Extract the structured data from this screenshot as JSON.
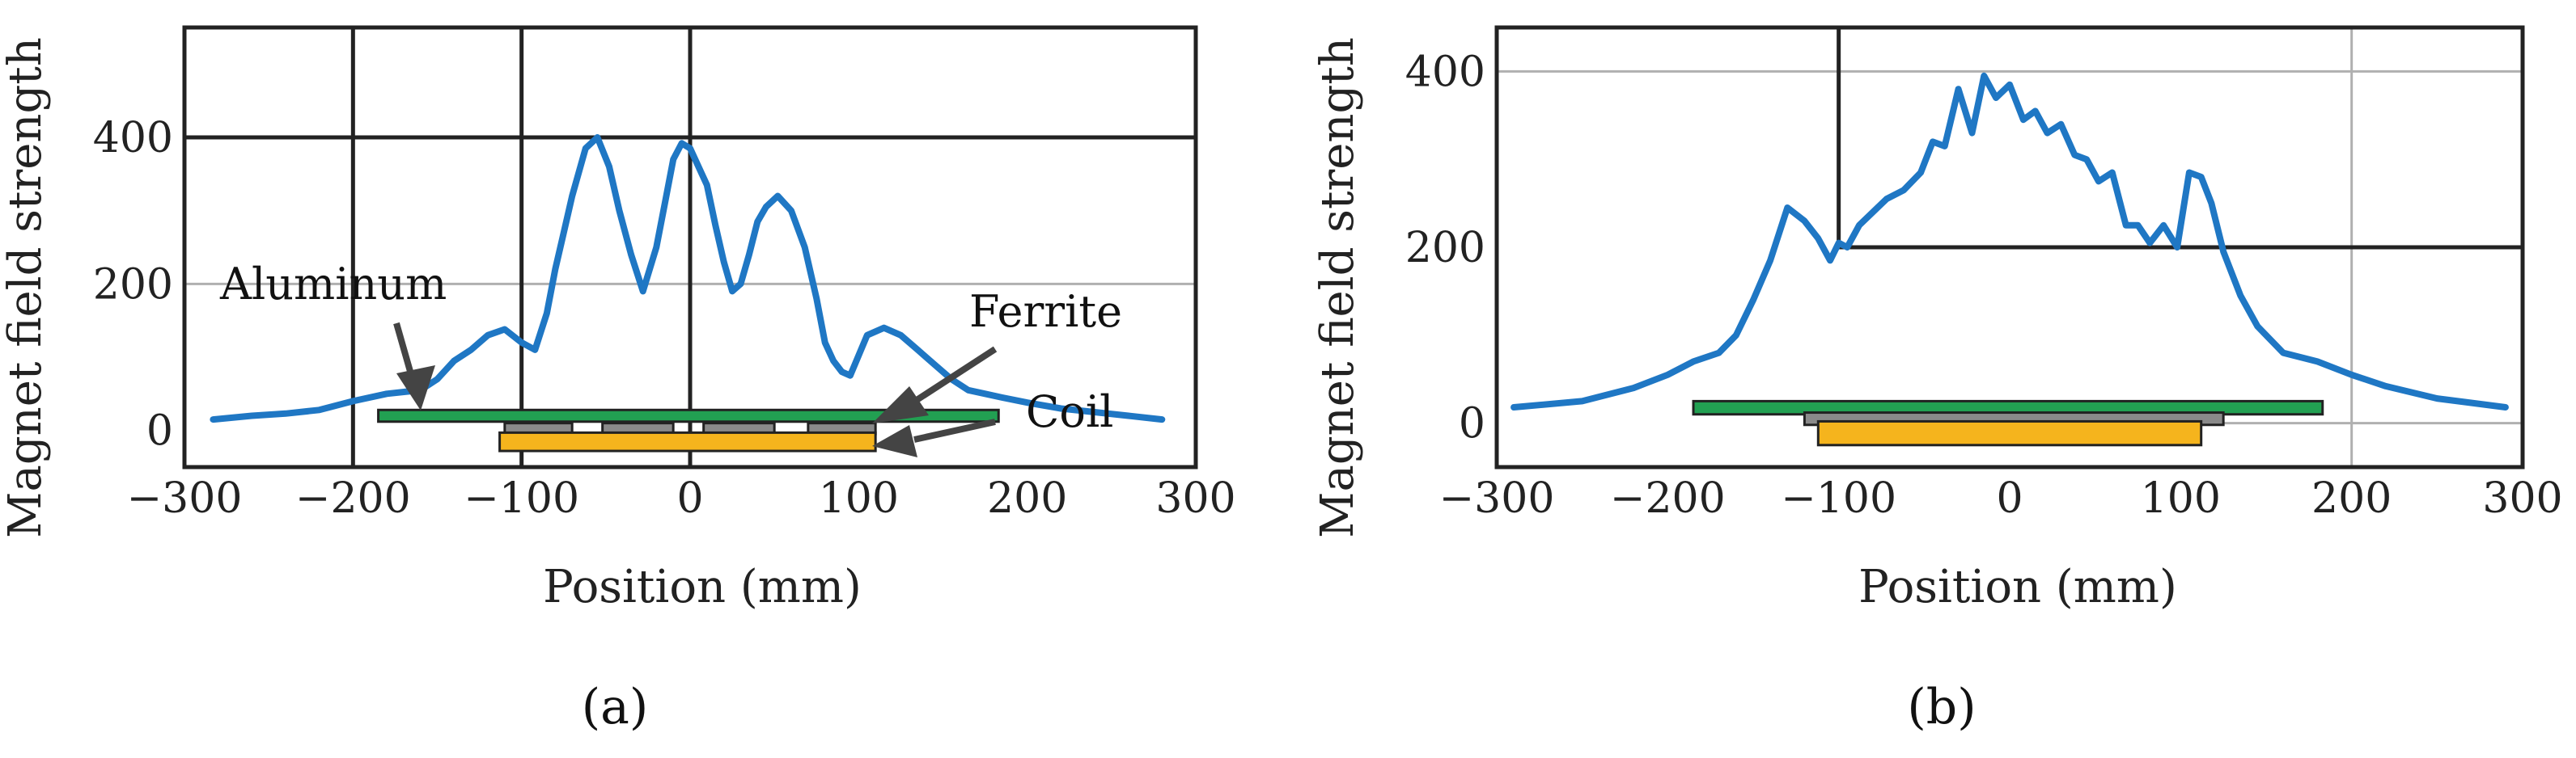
{
  "chart_data": [
    {
      "type": "line",
      "panel_label": "(a)",
      "xlabel": "Position (mm)",
      "ylabel": "Magnet field strength",
      "xlim": [
        -300,
        300
      ],
      "ylim": [
        -50,
        550
      ],
      "xticks": [
        -300,
        -200,
        -100,
        0,
        100,
        200,
        300
      ],
      "yticks": [
        0,
        200,
        400
      ],
      "xtick_labels": [
        "−300",
        "−200",
        "−100",
        "0",
        "100",
        "200",
        "300"
      ],
      "ytick_labels": [
        "0",
        "200",
        "400"
      ],
      "grid": {
        "major": "bold",
        "minor": "light"
      },
      "line_color": "#1f77c4",
      "series": [
        {
          "x": [
            -283,
            -260,
            -240,
            -220,
            -200,
            -180,
            -160,
            -150,
            -140,
            -130,
            -120,
            -110,
            -100,
            -92,
            -85,
            -80,
            -75,
            -70,
            -62,
            -55,
            -48,
            -42,
            -35,
            -28,
            -20,
            -15,
            -10,
            -5,
            0,
            5,
            10,
            15,
            20,
            25,
            30,
            35,
            40,
            45,
            52,
            60,
            68,
            75,
            80,
            85,
            90,
            95,
            105,
            115,
            125,
            135,
            145,
            155,
            165,
            175,
            185,
            200,
            220,
            240,
            260,
            280
          ],
          "y": [
            15,
            20,
            23,
            28,
            40,
            50,
            55,
            70,
            95,
            110,
            130,
            138,
            120,
            110,
            160,
            220,
            270,
            320,
            385,
            400,
            360,
            300,
            240,
            190,
            250,
            310,
            370,
            392,
            385,
            360,
            335,
            280,
            230,
            190,
            200,
            240,
            285,
            305,
            320,
            300,
            250,
            180,
            120,
            95,
            80,
            75,
            130,
            140,
            130,
            110,
            90,
            70,
            55,
            50,
            45,
            38,
            30,
            25,
            20,
            15
          ]
        }
      ],
      "components": [
        {
          "name": "Aluminum",
          "color": "#22a052"
        },
        {
          "name": "Ferrite",
          "color": "#8a8a8a"
        },
        {
          "name": "Coil",
          "color": "#f5b41d"
        }
      ]
    },
    {
      "type": "line",
      "panel_label": "(b)",
      "xlabel": "Position (mm)",
      "ylabel": "Magnet field strength",
      "xlim": [
        -300,
        300
      ],
      "ylim": [
        -50,
        450
      ],
      "xticks": [
        -300,
        -200,
        -100,
        0,
        100,
        200,
        300
      ],
      "yticks": [
        0,
        200,
        400
      ],
      "xtick_labels": [
        "−300",
        "−200",
        "−100",
        "0",
        "100",
        "200",
        "300"
      ],
      "ytick_labels": [
        "0",
        "200",
        "400"
      ],
      "grid": {
        "major": "bold",
        "minor": "light"
      },
      "line_color": "#1f77c4",
      "series": [
        {
          "x": [
            -290,
            -250,
            -220,
            -200,
            -185,
            -170,
            -160,
            -150,
            -140,
            -130,
            -120,
            -112,
            -105,
            -100,
            -95,
            -88,
            -80,
            -72,
            -62,
            -52,
            -45,
            -38,
            -30,
            -22,
            -15,
            -8,
            0,
            8,
            15,
            22,
            30,
            38,
            45,
            52,
            60,
            68,
            75,
            82,
            90,
            98,
            105,
            112,
            118,
            125,
            135,
            145,
            160,
            180,
            200,
            220,
            250,
            290
          ],
          "y": [
            18,
            25,
            40,
            55,
            70,
            80,
            100,
            140,
            185,
            245,
            230,
            210,
            185,
            205,
            200,
            225,
            240,
            255,
            265,
            285,
            320,
            315,
            380,
            330,
            395,
            370,
            385,
            345,
            355,
            330,
            340,
            305,
            300,
            275,
            285,
            225,
            225,
            205,
            225,
            200,
            285,
            280,
            250,
            195,
            145,
            110,
            80,
            70,
            55,
            42,
            28,
            18
          ]
        }
      ],
      "components": [
        {
          "name": "Aluminum",
          "color": "#22a052"
        },
        {
          "name": "Ferrite",
          "color": "#8a8a8a"
        },
        {
          "name": "Coil",
          "color": "#f5b41d"
        }
      ]
    }
  ],
  "annotations_a": {
    "aluminum": "Aluminum",
    "ferrite": "Ferrite",
    "coil": "Coil"
  }
}
